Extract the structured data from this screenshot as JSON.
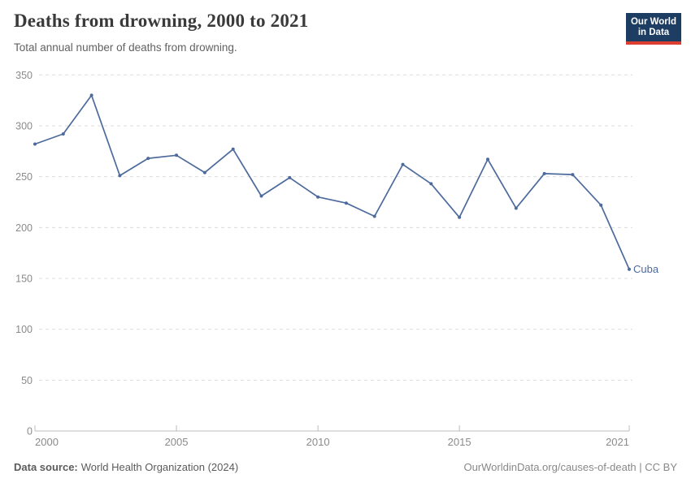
{
  "header": {
    "title": "Deaths from drowning, 2000 to 2021",
    "subtitle": "Total annual number of deaths from drowning.",
    "logo": {
      "line1": "Our World",
      "line2": "in Data"
    }
  },
  "chart_data": {
    "type": "line",
    "title": "Deaths from drowning, 2000 to 2021",
    "subtitle": "Total annual number of deaths from drowning.",
    "x": [
      2000,
      2001,
      2002,
      2003,
      2004,
      2005,
      2006,
      2007,
      2008,
      2009,
      2010,
      2011,
      2012,
      2013,
      2014,
      2015,
      2016,
      2017,
      2018,
      2019,
      2020,
      2021
    ],
    "series": [
      {
        "name": "Cuba",
        "color": "#4C6A9C",
        "values": [
          282,
          292,
          330,
          251,
          268,
          271,
          254,
          277,
          231,
          249,
          230,
          224,
          211,
          262,
          243,
          210,
          267,
          219,
          253,
          252,
          222,
          159
        ]
      }
    ],
    "ylim": [
      0,
      350
    ],
    "ytick_interval": 50,
    "yticks": [
      0,
      50,
      100,
      150,
      200,
      250,
      300,
      350
    ],
    "xticks": [
      2000,
      2005,
      2010,
      2015,
      2021
    ],
    "grid": "horizontal-dashed",
    "legend_position": "end-of-line-label",
    "end_label": "Cuba"
  },
  "footer": {
    "source_label": "Data source:",
    "source_text": "World Health Organization (2024)",
    "credit": "OurWorldinData.org/causes-of-death | CC BY"
  },
  "colors": {
    "line": "#4C6A9C",
    "title": "#3a3a3a",
    "subtitle": "#616161",
    "tick_label": "#8b8b8b",
    "grid": "#dcdcdc",
    "axis": "#bcbcbc",
    "logo_bg": "#1d3d63",
    "logo_accent": "#dc3e32"
  }
}
